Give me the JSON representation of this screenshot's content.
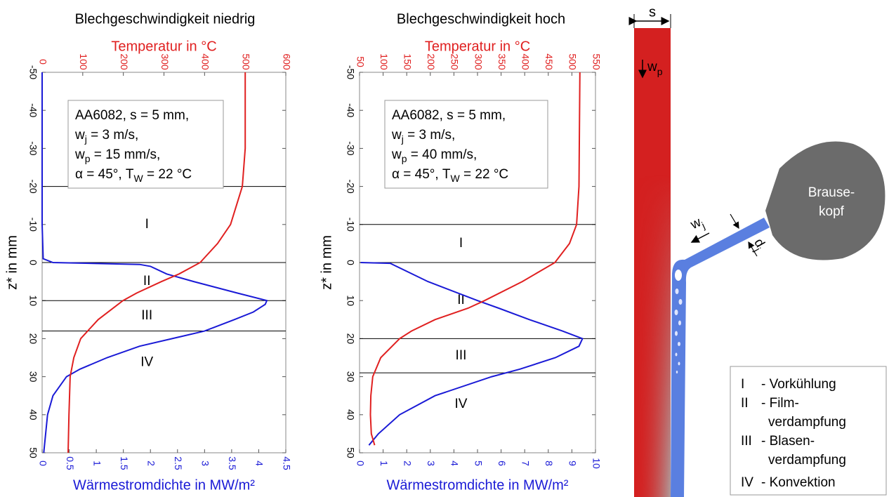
{
  "chart_data": [
    {
      "type": "line",
      "orientation": "vertical",
      "y_inverted": true,
      "title": "Blechgeschwindigkeit niedrig",
      "xlabel": "Wärmestromdichte in MW/m²",
      "x2label": "Temperatur in °C",
      "ylabel": "z* in mm",
      "xlim": [
        0,
        4.5
      ],
      "xticks": [
        0,
        0.5,
        1,
        1.5,
        2,
        2.5,
        3,
        3.5,
        4,
        4.5
      ],
      "x2lim": [
        0,
        600
      ],
      "x2ticks": [
        0,
        100,
        200,
        300,
        400,
        500,
        600
      ],
      "ylim": [
        -50,
        50
      ],
      "yticks": [
        -50,
        -40,
        -30,
        -20,
        -10,
        0,
        10,
        20,
        30,
        40,
        50
      ],
      "series": [
        {
          "axis": "x",
          "color": "#1a1ad6",
          "z": [
            -50,
            -10,
            -1,
            0,
            0.5,
            1,
            3,
            5,
            8,
            10,
            11,
            13,
            15,
            18,
            20,
            22,
            25,
            28,
            30,
            35,
            40,
            50
          ],
          "values": [
            0,
            0,
            0.02,
            0.2,
            1.8,
            2.0,
            2.3,
            2.8,
            3.6,
            4.15,
            4.12,
            3.9,
            3.55,
            3.0,
            2.4,
            1.8,
            1.2,
            0.7,
            0.45,
            0.2,
            0.1,
            0.03
          ]
        },
        {
          "axis": "x2",
          "color": "#e02020",
          "z": [
            -50,
            -30,
            -20,
            -10,
            -5,
            0,
            3,
            5,
            8,
            10,
            15,
            18,
            20,
            25,
            30,
            40,
            50
          ],
          "values": [
            500,
            500,
            493,
            464,
            432,
            389,
            337,
            294,
            233,
            199,
            138,
            112,
            95,
            78,
            69,
            66,
            64
          ]
        }
      ],
      "zone_bounds": [
        -20,
        0,
        10,
        18
      ],
      "zones": [
        "I",
        "II",
        "III",
        "IV"
      ],
      "annotation": [
        [
          {
            "text": "AA6082, s = 5 mm,"
          }
        ],
        [
          {
            "text": "w"
          },
          {
            "sub": "j"
          },
          {
            "text": " = 3 m/s,"
          }
        ],
        [
          {
            "text": "w"
          },
          {
            "sub": "p"
          },
          {
            "text": " = 15 mm/s,"
          }
        ],
        [
          {
            "text": "α = 45°, T"
          },
          {
            "sub": "W"
          },
          {
            "text": " = 22 °C"
          }
        ]
      ]
    },
    {
      "type": "line",
      "orientation": "vertical",
      "y_inverted": true,
      "title": "Blechgeschwindigkeit hoch",
      "xlabel": "Wärmestromdichte in MW/m²",
      "x2label": "Temperatur in °C",
      "ylabel": "z* in mm",
      "xlim": [
        0,
        10
      ],
      "xticks": [
        0,
        1,
        2,
        3,
        4,
        5,
        6,
        7,
        8,
        9,
        10
      ],
      "x2lim": [
        50,
        550
      ],
      "x2ticks": [
        50,
        100,
        150,
        200,
        250,
        300,
        350,
        400,
        450,
        500,
        550
      ],
      "ylim": [
        -50,
        50
      ],
      "yticks": [
        -50,
        -40,
        -30,
        -20,
        -10,
        0,
        10,
        20,
        30,
        40,
        50
      ],
      "series": [
        {
          "axis": "x",
          "color": "#1a1ad6",
          "z": [
            0,
            0.2,
            5,
            10,
            12,
            15,
            18,
            20,
            22,
            25,
            28,
            30,
            35,
            40,
            45,
            48
          ],
          "values": [
            0.05,
            1.3,
            2.9,
            5.0,
            5.9,
            7.2,
            8.6,
            9.45,
            9.3,
            8.3,
            6.8,
            5.6,
            3.2,
            1.7,
            0.8,
            0.4
          ]
        },
        {
          "axis": "x2",
          "color": "#e02020",
          "z": [
            -50,
            -20,
            -10,
            -5,
            0,
            5,
            10,
            12,
            15,
            18,
            20,
            25,
            30,
            35,
            40,
            45,
            48
          ],
          "values": [
            517,
            515,
            510,
            495,
            464,
            395,
            315,
            280,
            210,
            160,
            135,
            95,
            78,
            74,
            73,
            75,
            82
          ]
        }
      ],
      "zone_bounds": [
        -10,
        0,
        20,
        29
      ],
      "zones": [
        "I",
        "II",
        "III",
        "IV"
      ],
      "annotation": [
        [
          {
            "text": "AA6082, s = 5 mm,"
          }
        ],
        [
          {
            "text": "w"
          },
          {
            "sub": "j"
          },
          {
            "text": " = 3 m/s,"
          }
        ],
        [
          {
            "text": "w"
          },
          {
            "sub": "p"
          },
          {
            "text": " = 40 mm/s,"
          }
        ],
        [
          {
            "text": "α = 45°, T"
          },
          {
            "sub": "W"
          },
          {
            "text": " = 22 °C"
          }
        ]
      ]
    }
  ],
  "diagram": {
    "thickness": "s",
    "plate_speed": {
      "base": "w",
      "sub": "p"
    },
    "jet_speed": {
      "base": "w",
      "sub": "j"
    },
    "jet_diameter": {
      "base": "d",
      "sub": "j"
    },
    "nozzle": [
      "Brause-",
      "kopf"
    ],
    "legend": [
      {
        "numeral": "I",
        "text": [
          "- Vorkühlung"
        ]
      },
      {
        "numeral": "II",
        "text": [
          "- Film-",
          "verdampfung"
        ]
      },
      {
        "numeral": "III",
        "text": [
          "- Blasen-",
          "verdampfung"
        ]
      },
      {
        "numeral": "IV",
        "text": [
          "- Konvektion"
        ]
      }
    ]
  }
}
